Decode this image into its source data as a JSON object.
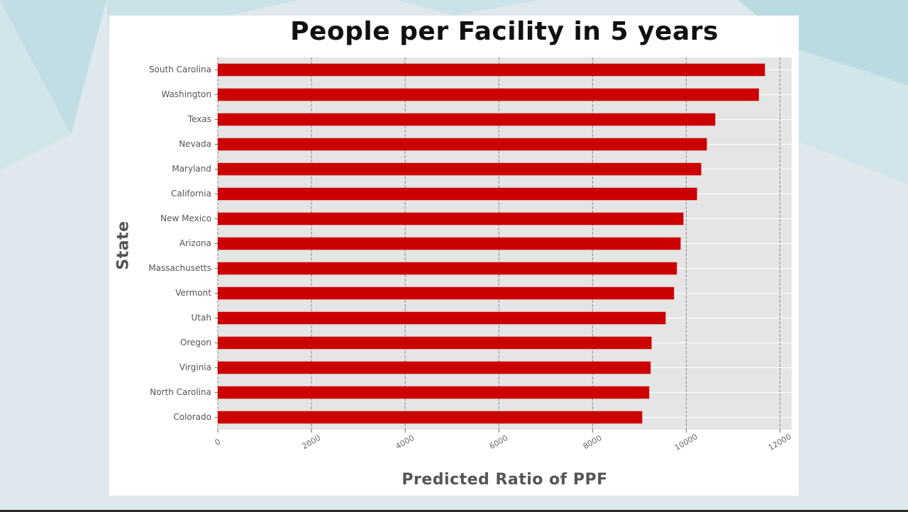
{
  "chart_data": {
    "type": "bar",
    "orientation": "horizontal",
    "title": "People per Facility in 5 years",
    "xlabel": "Predicted Ratio of PPF",
    "ylabel": "State",
    "categories": [
      "South Carolina",
      "Washington",
      "Texas",
      "Nevada",
      "Maryland",
      "California",
      "New Mexico",
      "Arizona",
      "Massachusetts",
      "Vermont",
      "Utah",
      "Oregon",
      "Virginia",
      "North Carolina",
      "Colorado"
    ],
    "values": [
      11680,
      11550,
      10620,
      10440,
      10320,
      10230,
      9940,
      9880,
      9800,
      9740,
      9560,
      9260,
      9240,
      9210,
      9060
    ],
    "xlim": [
      0,
      12250
    ],
    "xticks": [
      0,
      2000,
      4000,
      6000,
      8000,
      10000,
      12000
    ],
    "xtick_labels": [
      "0",
      "2000",
      "4000",
      "6000",
      "8000",
      "10000",
      "12000"
    ],
    "grid": true,
    "colors": {
      "bar": "#cc0000",
      "plot_bg": "#e5e5e5",
      "grid_vertical": "#888888",
      "grid_horizontal": "#ffffff"
    }
  }
}
